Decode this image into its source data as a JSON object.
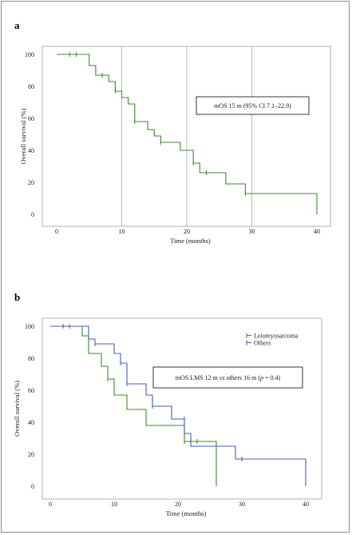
{
  "panels": [
    {
      "letter": "a",
      "chart_data": {
        "type": "line",
        "subtype": "kaplan-meier",
        "title": "",
        "xlabel": "Time (months)",
        "ylabel": "Overall survival (%)",
        "xlim": [
          0,
          40
        ],
        "ylim": [
          0,
          100
        ],
        "xticks": [
          "0",
          "10",
          "20",
          "30",
          "40"
        ],
        "yticks": [
          "0",
          "20",
          "40",
          "60",
          "80",
          "100"
        ],
        "grid": "vertical",
        "annotation": "mOS 15 m (95% CI 7.1–22.9)",
        "colors": {
          "curve": "#3a8a2a"
        },
        "series": [
          {
            "name": "",
            "color": "#3a8a2a",
            "steps": [
              [
                0,
                100
              ],
              [
                4,
                100
              ],
              [
                5,
                93
              ],
              [
                6,
                87
              ],
              [
                8,
                83
              ],
              [
                9,
                77
              ],
              [
                10,
                73
              ],
              [
                11,
                69
              ],
              [
                12,
                58
              ],
              [
                14,
                53
              ],
              [
                15,
                49
              ],
              [
                16,
                45
              ],
              [
                19,
                40
              ],
              [
                21,
                32
              ],
              [
                22,
                26
              ],
              [
                26,
                19
              ],
              [
                29,
                13
              ],
              [
                40,
                13
              ],
              [
                40,
                0
              ]
            ],
            "censored": [
              [
                2,
                100
              ],
              [
                3,
                100
              ],
              [
                7,
                87
              ],
              [
                9,
                77
              ],
              [
                12,
                58
              ],
              [
                16,
                45
              ],
              [
                21,
                32
              ],
              [
                23,
                26
              ],
              [
                29,
                13
              ]
            ]
          }
        ]
      }
    },
    {
      "letter": "b",
      "chart_data": {
        "type": "line",
        "subtype": "kaplan-meier",
        "title": "",
        "xlabel": "Time (months)",
        "ylabel": "Overall survival (%)",
        "xlim": [
          0,
          40
        ],
        "ylim": [
          0,
          100
        ],
        "xticks": [
          "0",
          "10",
          "20",
          "30",
          "40"
        ],
        "yticks": [
          "0",
          "20",
          "40",
          "60",
          "80",
          "100"
        ],
        "grid": "none",
        "legend_position": "top-right",
        "annotation": "mOS LMS 12 m vs others 16 m (p = 0.4)",
        "annotation_parts": {
          "a": "mOS LMS 12 m ",
          "b": "vs",
          "c": " others 16 m (",
          "d": "p",
          "e": " = 0.4)"
        },
        "series": [
          {
            "name": "Leiomyosarcoma",
            "color": "#3a8a2a",
            "steps": [
              [
                0,
                100
              ],
              [
                4,
                100
              ],
              [
                5,
                94
              ],
              [
                6,
                83
              ],
              [
                8,
                75
              ],
              [
                9,
                67
              ],
              [
                10,
                57
              ],
              [
                12,
                48
              ],
              [
                15,
                38
              ],
              [
                20,
                38
              ],
              [
                21,
                28
              ],
              [
                26,
                28
              ],
              [
                26,
                0
              ]
            ],
            "censored": [
              [
                2,
                100
              ],
              [
                3,
                100
              ],
              [
                9,
                67
              ],
              [
                21,
                28
              ],
              [
                23,
                28
              ]
            ]
          },
          {
            "name": "Others",
            "color": "#4a5ab0",
            "steps": [
              [
                0,
                100
              ],
              [
                5,
                100
              ],
              [
                6,
                92
              ],
              [
                7,
                89
              ],
              [
                10,
                83
              ],
              [
                11,
                77
              ],
              [
                12,
                64
              ],
              [
                15,
                57
              ],
              [
                16,
                50
              ],
              [
                19,
                42
              ],
              [
                21,
                33
              ],
              [
                22,
                25
              ],
              [
                29,
                17
              ],
              [
                40,
                17
              ],
              [
                40,
                0
              ]
            ],
            "censored": [
              [
                2,
                100
              ],
              [
                3,
                100
              ],
              [
                7,
                89
              ],
              [
                11,
                77
              ],
              [
                12,
                64
              ],
              [
                16,
                50
              ],
              [
                21,
                42
              ],
              [
                30,
                17
              ]
            ]
          }
        ]
      }
    }
  ]
}
